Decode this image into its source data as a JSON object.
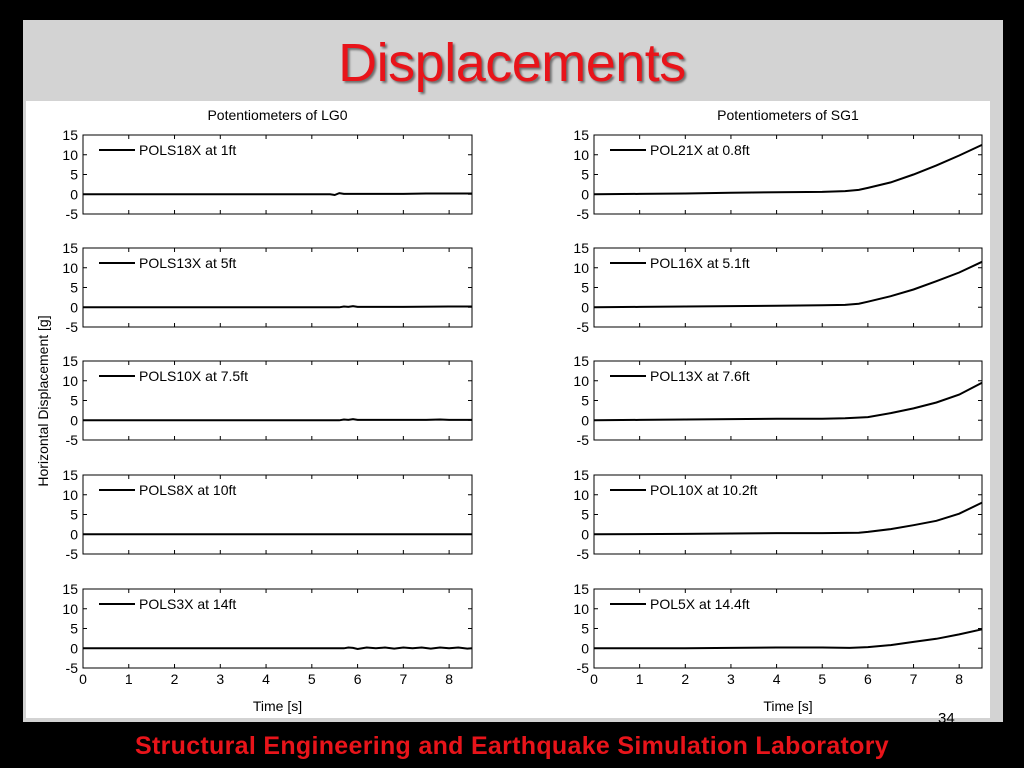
{
  "slide": {
    "title": "Displacements",
    "footer": "Structural Engineering and Earthquake Simulation Laboratory",
    "page_number": "34"
  },
  "chart_data": [
    {
      "type": "line",
      "column_title": "Potentiometers of LG0",
      "ylabel": "Horizontal Displacement [g]",
      "xlabel": "Time [s]",
      "xlim": [
        0,
        8.5
      ],
      "ylim": [
        -5,
        15
      ],
      "xticks": [
        0,
        1,
        2,
        3,
        4,
        5,
        6,
        7,
        8
      ],
      "yticks": [
        -5,
        0,
        5,
        10,
        15
      ],
      "panels": [
        {
          "legend": "POLS18X at 1ft",
          "x": [
            0,
            5.4,
            5.5,
            5.6,
            5.7,
            5.8,
            6.0,
            7.0,
            7.5,
            7.8,
            8.5
          ],
          "y": [
            0,
            0,
            -0.2,
            0.3,
            0.1,
            0.1,
            0.1,
            0.1,
            0.2,
            0.2,
            0.2
          ]
        },
        {
          "legend": "POLS13X at 5ft",
          "x": [
            0,
            5.6,
            5.7,
            5.8,
            5.9,
            6.0,
            7.0,
            8.0,
            8.5
          ],
          "y": [
            0,
            0,
            0.2,
            0.1,
            0.3,
            0.1,
            0.1,
            0.2,
            0.2
          ]
        },
        {
          "legend": "POLS10X at 7.5ft",
          "x": [
            0,
            5.6,
            5.7,
            5.8,
            5.9,
            6.0,
            7.5,
            7.8,
            8.0,
            8.5
          ],
          "y": [
            0,
            0,
            0.2,
            0.1,
            0.3,
            0.1,
            0.1,
            0.2,
            0.1,
            0.1
          ]
        },
        {
          "legend": "POLS8X at 10ft",
          "x": [
            0,
            8.5
          ],
          "y": [
            0,
            0
          ]
        },
        {
          "legend": "POLS3X at 14ft",
          "x": [
            0,
            5.7,
            5.8,
            5.9,
            6.0,
            6.2,
            6.4,
            6.6,
            6.8,
            7.0,
            7.2,
            7.4,
            7.6,
            7.8,
            8.0,
            8.2,
            8.4,
            8.5
          ],
          "y": [
            0,
            0,
            0.2,
            0.1,
            -0.2,
            0.2,
            0.0,
            0.2,
            -0.1,
            0.2,
            0.0,
            0.2,
            -0.1,
            0.2,
            0.0,
            0.2,
            -0.1,
            0.0
          ]
        }
      ]
    },
    {
      "type": "line",
      "column_title": "Potentiometers of SG1",
      "xlabel": "Time [s]",
      "xlim": [
        0,
        8.5
      ],
      "ylim": [
        -5,
        15
      ],
      "xticks": [
        0,
        1,
        2,
        3,
        4,
        5,
        6,
        7,
        8
      ],
      "yticks": [
        -5,
        0,
        5,
        10,
        15
      ],
      "panels": [
        {
          "legend": "POL21X at 0.8ft",
          "x": [
            0,
            1.0,
            2.0,
            3.0,
            4.0,
            5.0,
            5.5,
            5.8,
            6.0,
            6.5,
            7.0,
            7.5,
            8.0,
            8.5
          ],
          "y": [
            0,
            0.1,
            0.2,
            0.4,
            0.5,
            0.6,
            0.8,
            1.1,
            1.6,
            3.0,
            5.0,
            7.3,
            9.8,
            12.5
          ]
        },
        {
          "legend": "POL16X at 5.1ft",
          "x": [
            0,
            1.0,
            2.0,
            3.0,
            4.0,
            5.0,
            5.5,
            5.8,
            6.0,
            6.5,
            7.0,
            7.5,
            8.0,
            8.5
          ],
          "y": [
            0,
            0.1,
            0.2,
            0.3,
            0.4,
            0.5,
            0.6,
            0.9,
            1.4,
            2.8,
            4.5,
            6.6,
            8.8,
            11.5
          ]
        },
        {
          "legend": "POL13X at 7.6ft",
          "x": [
            0,
            1.0,
            2.0,
            3.0,
            4.0,
            5.0,
            5.5,
            6.0,
            6.5,
            7.0,
            7.5,
            8.0,
            8.5
          ],
          "y": [
            0,
            0.1,
            0.2,
            0.3,
            0.4,
            0.4,
            0.5,
            0.8,
            1.8,
            3.0,
            4.5,
            6.5,
            9.5
          ]
        },
        {
          "legend": "POL10X at 10.2ft",
          "x": [
            0,
            2.0,
            3.0,
            4.0,
            5.0,
            5.8,
            6.0,
            6.5,
            7.0,
            7.5,
            8.0,
            8.5
          ],
          "y": [
            0,
            0.1,
            0.2,
            0.3,
            0.3,
            0.4,
            0.6,
            1.3,
            2.3,
            3.4,
            5.2,
            8.0
          ]
        },
        {
          "legend": "POL5X at 14.4ft",
          "x": [
            0,
            2.0,
            3.0,
            4.0,
            5.0,
            5.6,
            5.8,
            6.0,
            6.5,
            7.0,
            7.5,
            8.0,
            8.5
          ],
          "y": [
            0,
            0,
            0.1,
            0.2,
            0.2,
            0.1,
            0.2,
            0.3,
            0.8,
            1.6,
            2.4,
            3.5,
            4.8
          ]
        }
      ]
    }
  ]
}
